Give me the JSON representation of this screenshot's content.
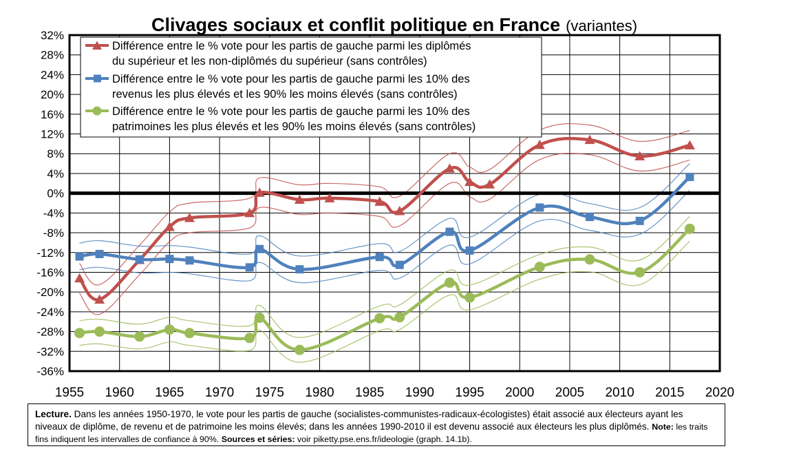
{
  "chart_data": {
    "type": "line",
    "title": "Clivages sociaux et conflit politique en France",
    "subtitle": "(variantes)",
    "xlim": [
      1955,
      2020
    ],
    "ylim": [
      -36,
      32
    ],
    "x_ticks": [
      1955,
      1960,
      1965,
      1970,
      1975,
      1980,
      1985,
      1990,
      1995,
      2000,
      2005,
      2010,
      2015,
      2020
    ],
    "x_tick_labels": [
      "1955",
      "1960",
      "1965",
      "1970",
      "1975",
      "1980",
      "1985",
      "1990",
      "1995",
      "2000",
      "2005",
      "2010",
      "2015",
      "2020"
    ],
    "y_ticks": [
      -36,
      -32,
      -28,
      -24,
      -20,
      -16,
      -12,
      -8,
      -4,
      0,
      4,
      8,
      12,
      16,
      20,
      24,
      28,
      32
    ],
    "y_tick_labels": [
      "-36%",
      "-32%",
      "-28%",
      "-24%",
      "-20%",
      "-16%",
      "-12%",
      "-8%",
      "-4%",
      "0%",
      "4%",
      "8%",
      "12%",
      "16%",
      "20%",
      "24%",
      "28%",
      "32%"
    ],
    "grid": true,
    "legend_position": "top-left",
    "series": [
      {
        "name_lines": [
          "Différence entre le % vote pour les partis de gauche parmi les diplômés",
          "du supérieur et les non-diplômés du supérieur (sans contrôles)"
        ],
        "color": "#c0504d",
        "marker": "triangle",
        "x": [
          1956,
          1958,
          1962,
          1965,
          1967,
          1973,
          1974,
          1978,
          1981,
          1986,
          1988,
          1993,
          1995,
          1997,
          2002,
          2007,
          2012,
          2017
        ],
        "y": [
          -17.2,
          -21.5,
          -13.5,
          -6.8,
          -5.0,
          -4.0,
          0.1,
          -1.3,
          -1.0,
          -1.7,
          -3.6,
          5.0,
          2.3,
          1.8,
          9.8,
          10.8,
          7.5,
          9.7
        ],
        "ci_half_width": 3.0
      },
      {
        "name_lines": [
          "Différence entre le % vote pour les partis de gauche parmi les 10% des",
          "revenus les plus élevés et les 90% les moins élevés (sans contrôles)"
        ],
        "color": "#4f81bd",
        "marker": "square",
        "x": [
          1956,
          1958,
          1962,
          1965,
          1967,
          1973,
          1974,
          1978,
          1986,
          1988,
          1993,
          1995,
          2002,
          2007,
          2012,
          2017
        ],
        "y": [
          -12.8,
          -12.3,
          -13.4,
          -13.3,
          -13.6,
          -15.0,
          -11.3,
          -15.4,
          -12.9,
          -14.5,
          -7.8,
          -11.6,
          -2.9,
          -4.8,
          -5.6,
          3.3
        ],
        "ci_half_width": 2.7
      },
      {
        "name_lines": [
          "Différence entre le % vote pour les partis de gauche parmi les 10% des",
          "patrimoines les plus élevés et les 90% les moins élevés (sans contrôles)"
        ],
        "color": "#9bbb59",
        "marker": "circle",
        "x": [
          1956,
          1958,
          1962,
          1965,
          1967,
          1973,
          1974,
          1978,
          1986,
          1988,
          1993,
          1995,
          2002,
          2007,
          2012,
          2017
        ],
        "y": [
          -28.3,
          -28.0,
          -29.0,
          -27.6,
          -28.3,
          -29.3,
          -25.2,
          -31.7,
          -25.3,
          -25.1,
          -18.1,
          -21.1,
          -14.9,
          -13.4,
          -16.0,
          -7.2
        ],
        "ci_half_width": 2.5
      }
    ]
  },
  "lecture": {
    "label": "Lecture.",
    "text": " Dans les années 1950-1970, le vote pour les partis de gauche (socialistes-communistes-radicaux-écologistes) était associé aux électeurs ayant les niveaux de diplôme, de revenu et de patrimoine les moins élevés; dans les années 1990-2010 il est devenu associé aux électeurs les plus diplômés.",
    "note_label": "Note:",
    "note_text": " les traits fins indiquent les intervalles de confiance à 90%.",
    "sources_label": "Sources et séries:",
    "sources_text": " voir piketty.pse.ens.fr/ideologie (graph. 14.1b)."
  }
}
